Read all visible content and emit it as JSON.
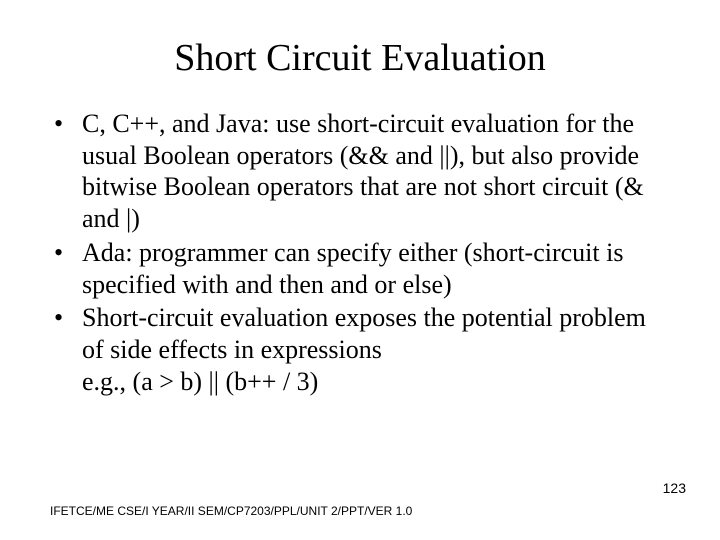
{
  "title": "Short Circuit Evaluation",
  "bullets": [
    "C, C++, and Java: use short-circuit evaluation for the usual Boolean operators (&& and ||), but also provide bitwise Boolean operators that are not short circuit (& and |)",
    "Ada: programmer can specify either (short-circuit is specified with and then and or else)",
    "Short-circuit evaluation exposes the potential problem of side effects in expressions"
  ],
  "example": "e.g., (a > b) || (b++ / 3)",
  "footer": "IFETCE/ME CSE/I YEAR/II SEM/CP7203/PPL/UNIT 2/PPT/VER 1.0",
  "page_number": "123",
  "style": {
    "background_color": "#ffffff",
    "text_color": "#000000",
    "title_fontsize": 38,
    "body_fontsize": 26,
    "footer_fontsize": 12,
    "pagenum_fontsize": 14,
    "font_family_body": "Times New Roman",
    "font_family_footer": "Arial"
  }
}
